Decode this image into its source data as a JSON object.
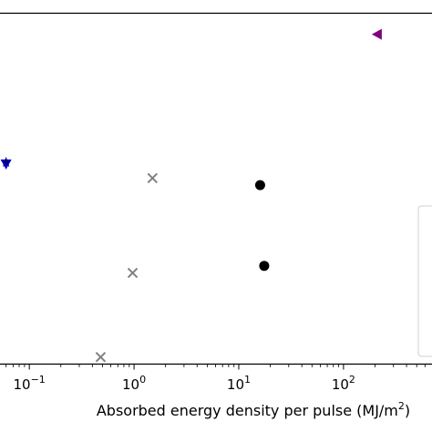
{
  "chart_data": {
    "type": "scatter",
    "title": "",
    "xlabel": {
      "text": "Absorbed energy density per pulse (MJ/m",
      "superscript": "2",
      "suffix": ")"
    },
    "ylabel": "",
    "xscale": "log",
    "xlim": [
      0.0525,
      700
    ],
    "ylim": [
      0,
      1
    ],
    "x_tick_labels": [
      {
        "value": 0.1,
        "base": "10",
        "exp": "−1"
      },
      {
        "value": 1,
        "base": "10",
        "exp": "0"
      },
      {
        "value": 10,
        "base": "10",
        "exp": "1"
      },
      {
        "value": 100,
        "base": "10",
        "exp": "2"
      }
    ],
    "x_minor_ticks": [
      0.06,
      0.07,
      0.08,
      0.09,
      0.2,
      0.3,
      0.4,
      0.5,
      0.6,
      0.7,
      0.8,
      0.9,
      2,
      3,
      4,
      5,
      6,
      7,
      8,
      9,
      20,
      30,
      40,
      50,
      60,
      70,
      80,
      90,
      200,
      300,
      400,
      500,
      600
    ],
    "y_tick_labels": [],
    "grid": false,
    "legend": {
      "placement": "right",
      "entries": []
    },
    "series": [
      {
        "marker": "circle",
        "color": "#000000",
        "points": [
          {
            "x": 16,
            "y": 0.51
          },
          {
            "x": 17.5,
            "y": 0.28
          }
        ]
      },
      {
        "marker": "x",
        "color": "#808080",
        "points": [
          {
            "x": 1.5,
            "y": 0.53
          },
          {
            "x": 0.97,
            "y": 0.26
          },
          {
            "x": 0.48,
            "y": 0.02
          }
        ]
      },
      {
        "marker": "triangle-left",
        "color": "#800080",
        "points": [
          {
            "x": 210,
            "y": 0.94
          }
        ]
      },
      {
        "marker": "triangle-down",
        "color": "#0000ff",
        "points": [
          {
            "x": 0.06,
            "y": 0.57
          }
        ]
      },
      {
        "marker": "star",
        "color": "#000080",
        "points": [
          {
            "x": 0.06,
            "y": 0.575
          }
        ]
      }
    ]
  }
}
